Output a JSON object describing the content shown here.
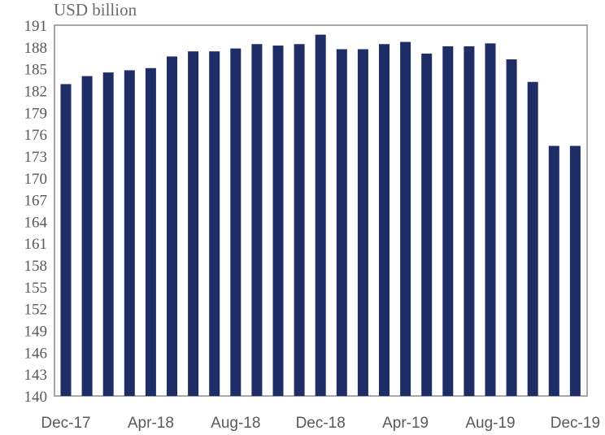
{
  "chart_data": {
    "type": "bar",
    "title": "",
    "ylabel": "USD billion",
    "xlabel": "",
    "ylim": [
      140,
      191
    ],
    "yticks": [
      140,
      143,
      146,
      149,
      152,
      155,
      158,
      161,
      164,
      167,
      170,
      173,
      176,
      179,
      182,
      185,
      188,
      191
    ],
    "categories": [
      "Dec-17",
      "Jan-18",
      "Feb-18",
      "Mar-18",
      "Apr-18",
      "May-18",
      "Jun-18",
      "Jul-18",
      "Aug-18",
      "Sep-18",
      "Oct-18",
      "Nov-18",
      "Dec-18",
      "Jan-19",
      "Feb-19",
      "Mar-19",
      "Apr-19",
      "May-19",
      "Jun-19",
      "Jul-19",
      "Aug-19",
      "Sep-19",
      "Oct-19",
      "Nov-19",
      "Dec-19"
    ],
    "xtick_labels": [
      "Dec-17",
      "Apr-18",
      "Aug-18",
      "Dec-18",
      "Apr-19",
      "Aug-19",
      "Dec-19"
    ],
    "values": [
      182.9,
      184.0,
      184.5,
      184.8,
      185.1,
      186.7,
      187.4,
      187.4,
      187.8,
      188.4,
      188.2,
      188.4,
      189.7,
      187.7,
      187.7,
      188.4,
      188.7,
      187.1,
      188.1,
      188.1,
      188.5,
      186.3,
      183.2,
      174.4,
      174.4
    ],
    "grid": false,
    "bar_color": "#1f2d66",
    "text_color": "#595959"
  }
}
